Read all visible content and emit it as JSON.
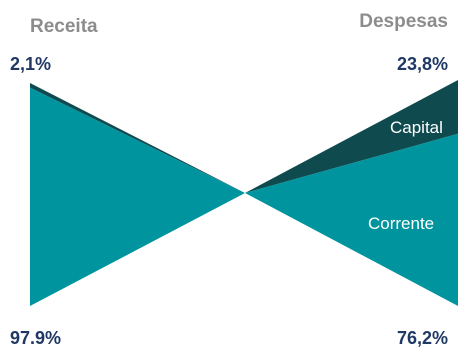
{
  "chart_data": {
    "type": "bowtie",
    "left": {
      "header": "Receita",
      "top_value_label": "2,1%",
      "bottom_value_label": "97.9%",
      "segments": [
        {
          "name": "",
          "value": 2.1,
          "color": "#0f4a4f"
        },
        {
          "name": "",
          "value": 97.9,
          "color": "#00959e"
        }
      ]
    },
    "right": {
      "header": "Despesas",
      "top_value_label": "23,8%",
      "bottom_value_label": "76,2%",
      "segments": [
        {
          "name": "Capital",
          "value": 23.8,
          "color": "#0f4a4f"
        },
        {
          "name": "Corrente",
          "value": 76.2,
          "color": "#00959e"
        }
      ]
    },
    "colors": {
      "header_text": "#8c8c8c",
      "value_text": "#1f3864",
      "segment_label_text": "#ffffff"
    }
  }
}
